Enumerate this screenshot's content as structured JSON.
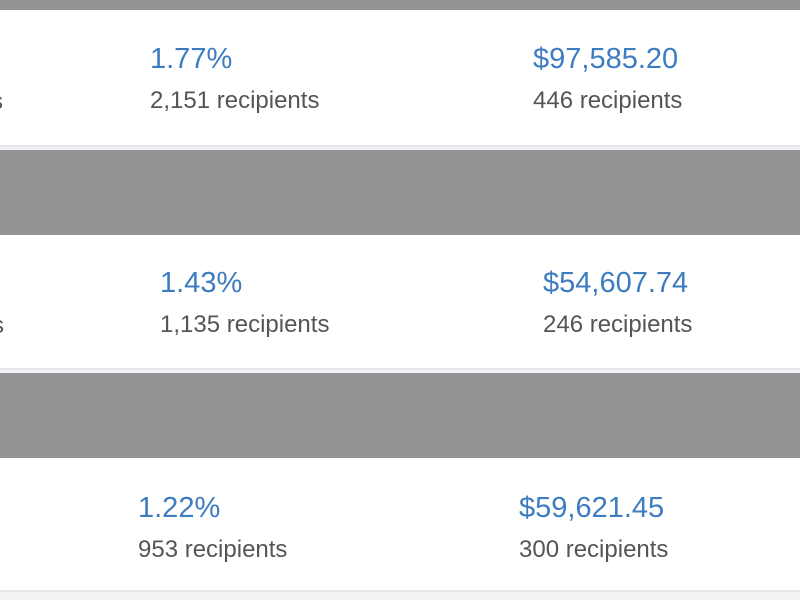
{
  "colors": {
    "accent": "#3d7cc0",
    "separator": "#959396",
    "secondary_text": "#555558"
  },
  "rows": [
    {
      "left_fragment": "s",
      "rate": {
        "value": "1.77%",
        "recipients": "2,151 recipients"
      },
      "revenue": {
        "value": "$97,585.20",
        "recipients": "446 recipients"
      }
    },
    {
      "left_fragment": "s",
      "rate": {
        "value": "1.43%",
        "recipients": "1,135 recipients"
      },
      "revenue": {
        "value": "$54,607.74",
        "recipients": "246 recipients"
      }
    },
    {
      "rate": {
        "value": "1.22%",
        "recipients": "953 recipients"
      },
      "revenue": {
        "value": "$59,621.45",
        "recipients": "300 recipients"
      }
    }
  ]
}
